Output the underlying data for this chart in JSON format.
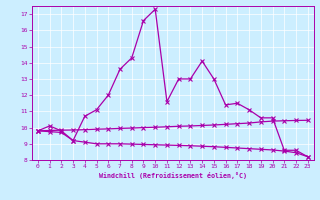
{
  "xlabel": "Windchill (Refroidissement éolien,°C)",
  "bg_color": "#cceeff",
  "line_color": "#aa00aa",
  "x": [
    0,
    1,
    2,
    3,
    4,
    5,
    6,
    7,
    8,
    9,
    10,
    11,
    12,
    13,
    14,
    15,
    16,
    17,
    18,
    19,
    20,
    21,
    22,
    23
  ],
  "y_upper": [
    9.8,
    10.1,
    9.8,
    9.2,
    10.7,
    11.1,
    12.0,
    13.6,
    14.3,
    16.6,
    17.3,
    11.6,
    13.0,
    13.0,
    14.1,
    13.0,
    11.4,
    11.5,
    11.1,
    10.6,
    10.6,
    8.6,
    8.6,
    8.2
  ],
  "y_mid": [
    9.8,
    9.82,
    9.84,
    9.85,
    9.87,
    9.9,
    9.92,
    9.95,
    9.97,
    10.0,
    10.02,
    10.05,
    10.08,
    10.1,
    10.13,
    10.16,
    10.2,
    10.24,
    10.28,
    10.35,
    10.4,
    10.42,
    10.44,
    10.45
  ],
  "y_lower": [
    9.8,
    9.75,
    9.7,
    9.2,
    9.1,
    9.0,
    9.0,
    9.0,
    8.98,
    8.96,
    8.94,
    8.92,
    8.9,
    8.88,
    8.85,
    8.82,
    8.78,
    8.74,
    8.7,
    8.66,
    8.62,
    8.55,
    8.45,
    8.2
  ],
  "ylim": [
    8,
    17.5
  ],
  "xlim": [
    -0.5,
    23.5
  ],
  "yticks": [
    8,
    9,
    10,
    11,
    12,
    13,
    14,
    15,
    16,
    17
  ],
  "xticks": [
    0,
    1,
    2,
    3,
    4,
    5,
    6,
    7,
    8,
    9,
    10,
    11,
    12,
    13,
    14,
    15,
    16,
    17,
    18,
    19,
    20,
    21,
    22,
    23
  ]
}
